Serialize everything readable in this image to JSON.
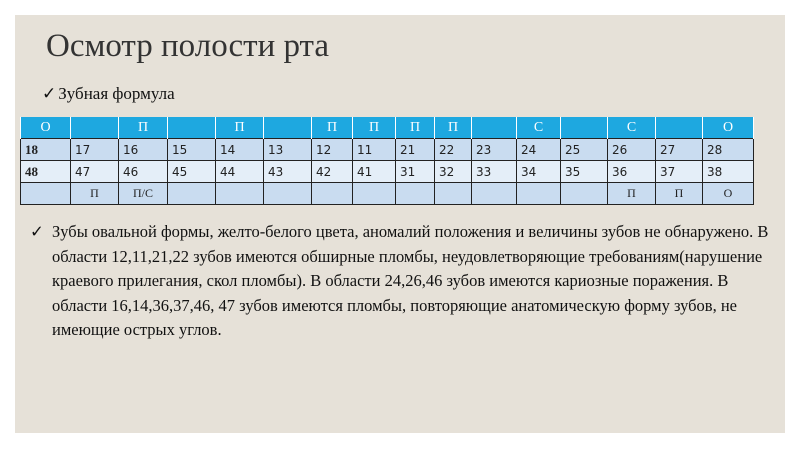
{
  "title": "Осмотр полости рта",
  "subtitle": "Зубная формула",
  "table": {
    "header": [
      "О",
      "",
      "П",
      "",
      "П",
      "",
      "П",
      "П",
      "П",
      "П",
      "",
      "С",
      "",
      "С",
      "",
      "О"
    ],
    "row1": [
      "18",
      "17",
      "16",
      "15",
      "14",
      "13",
      "12",
      "11",
      "21",
      "22",
      "23",
      "24",
      "25",
      "26",
      "27",
      "28"
    ],
    "row2": [
      "48",
      "47",
      "46",
      "45",
      "44",
      "43",
      "42",
      "41",
      "31",
      "32",
      "33",
      "34",
      "35",
      "36",
      "37",
      "38"
    ],
    "row3": [
      "",
      "П",
      "П/С",
      "",
      "",
      "",
      "",
      "",
      "",
      "",
      "",
      "",
      "",
      "П",
      "П",
      "О"
    ]
  },
  "description": "Зубы овальной формы, желто-белого цвета, аномалий положения и величины зубов не обнаружено. В области 12,11,21,22 зубов имеются обширные пломбы, неудовлетворяющие требованиям(нарушение краевого прилегания, скол пломбы). В области 24,26,46 зубов имеются кариозные поражения. В области 16,14,36,37,46, 47 зубов имеются пломбы, повторяющие анатомическую форму зубов, не имеющие острых углов.",
  "colors": {
    "header": "#1ea8e0",
    "row_dark": "#c9dcf0",
    "row_light": "#e4eef8",
    "background": "#e6e1d8"
  }
}
